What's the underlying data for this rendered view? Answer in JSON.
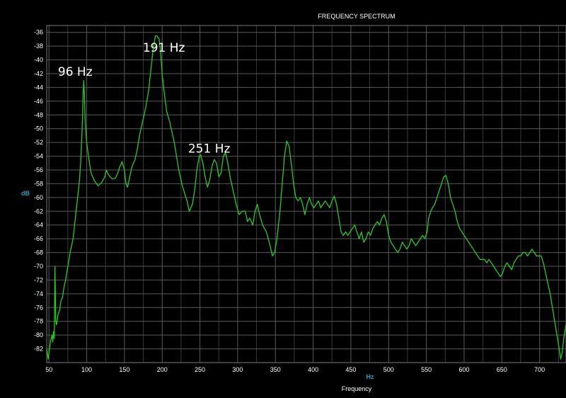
{
  "chart_data": {
    "type": "line",
    "title": "FREQUENCY SPECTRUM",
    "xlabel": "Frequency",
    "x_unit": "Hz",
    "ylabel": "dB",
    "xlim": [
      47,
      735
    ],
    "ylim": [
      -84,
      -35
    ],
    "grid": true,
    "x_ticks": [
      50,
      100,
      150,
      200,
      250,
      300,
      350,
      400,
      450,
      500,
      550,
      600,
      650,
      700
    ],
    "y_ticks": [
      -36,
      -38,
      -40,
      -42,
      -44,
      -46,
      -48,
      -50,
      -52,
      -54,
      -56,
      -58,
      -60,
      -62,
      -64,
      -66,
      -68,
      -70,
      -72,
      -74,
      -76,
      -78,
      -80,
      -82
    ],
    "series_color": "#22cc22",
    "grid_color": "#5a5a5a",
    "background": "#000000",
    "annotations": [
      {
        "text": "96 Hz",
        "x": 96,
        "y": -42.3
      },
      {
        "text": "191 Hz",
        "x": 191,
        "y": -38.8
      },
      {
        "text": "251 Hz",
        "x": 251,
        "y": -53.5
      }
    ],
    "points": [
      [
        47,
        -82.0
      ],
      [
        49,
        -83.5
      ],
      [
        50,
        -82.5
      ],
      [
        52,
        -81.0
      ],
      [
        54,
        -80.0
      ],
      [
        55,
        -81.0
      ],
      [
        56,
        -79.5
      ],
      [
        57,
        -80.5
      ],
      [
        58,
        -70.0
      ],
      [
        59,
        -78.0
      ],
      [
        60,
        -78.5
      ],
      [
        62,
        -77.0
      ],
      [
        64,
        -76.5
      ],
      [
        66,
        -75.0
      ],
      [
        68,
        -74.5
      ],
      [
        70,
        -73.0
      ],
      [
        72,
        -72.0
      ],
      [
        75,
        -70.0
      ],
      [
        78,
        -68.0
      ],
      [
        82,
        -66.0
      ],
      [
        85,
        -63.0
      ],
      [
        88,
        -60.0
      ],
      [
        90,
        -58.0
      ],
      [
        92,
        -55.0
      ],
      [
        94,
        -50.0
      ],
      [
        95,
        -46.0
      ],
      [
        96,
        -43.0
      ],
      [
        97,
        -45.0
      ],
      [
        98,
        -49.0
      ],
      [
        100,
        -52.0
      ],
      [
        103,
        -54.5
      ],
      [
        106,
        -56.5
      ],
      [
        110,
        -57.5
      ],
      [
        115,
        -58.3
      ],
      [
        120,
        -57.8
      ],
      [
        124,
        -57.0
      ],
      [
        126,
        -56.0
      ],
      [
        128,
        -56.5
      ],
      [
        131,
        -57.0
      ],
      [
        134,
        -57.3
      ],
      [
        138,
        -57.2
      ],
      [
        141,
        -56.5
      ],
      [
        144,
        -55.5
      ],
      [
        147,
        -54.8
      ],
      [
        150,
        -56.0
      ],
      [
        152,
        -58.0
      ],
      [
        154,
        -58.5
      ],
      [
        157,
        -57.0
      ],
      [
        160,
        -55.5
      ],
      [
        164,
        -54.5
      ],
      [
        167,
        -53.0
      ],
      [
        170,
        -51.0
      ],
      [
        174,
        -49.0
      ],
      [
        178,
        -47.0
      ],
      [
        182,
        -44.5
      ],
      [
        185,
        -41.5
      ],
      [
        188,
        -38.5
      ],
      [
        191,
        -36.5
      ],
      [
        193,
        -36.5
      ],
      [
        196,
        -37.0
      ],
      [
        198,
        -39.0
      ],
      [
        200,
        -42.0
      ],
      [
        203,
        -45.0
      ],
      [
        206,
        -47.5
      ],
      [
        210,
        -49.0
      ],
      [
        213,
        -50.5
      ],
      [
        216,
        -52.0
      ],
      [
        219,
        -54.0
      ],
      [
        222,
        -56.0
      ],
      [
        226,
        -58.0
      ],
      [
        230,
        -59.5
      ],
      [
        233,
        -60.5
      ],
      [
        236,
        -62.0
      ],
      [
        240,
        -61.0
      ],
      [
        243,
        -59.0
      ],
      [
        246,
        -56.0
      ],
      [
        249,
        -54.0
      ],
      [
        251,
        -53.8
      ],
      [
        254,
        -55.0
      ],
      [
        257,
        -57.0
      ],
      [
        260,
        -58.5
      ],
      [
        263,
        -57.5
      ],
      [
        266,
        -55.5
      ],
      [
        269,
        -54.5
      ],
      [
        272,
        -55.0
      ],
      [
        275,
        -57.0
      ],
      [
        278,
        -56.5
      ],
      [
        281,
        -54.0
      ],
      [
        284,
        -53.5
      ],
      [
        287,
        -55.0
      ],
      [
        290,
        -57.0
      ],
      [
        294,
        -59.0
      ],
      [
        298,
        -61.0
      ],
      [
        302,
        -62.5
      ],
      [
        306,
        -62.0
      ],
      [
        310,
        -62.0
      ],
      [
        313,
        -63.5
      ],
      [
        316,
        -63.0
      ],
      [
        320,
        -64.0
      ],
      [
        323,
        -62.0
      ],
      [
        326,
        -61.0
      ],
      [
        329,
        -62.5
      ],
      [
        333,
        -64.0
      ],
      [
        338,
        -65.0
      ],
      [
        343,
        -67.0
      ],
      [
        346,
        -68.5
      ],
      [
        349,
        -68.0
      ],
      [
        352,
        -66.0
      ],
      [
        356,
        -62.0
      ],
      [
        359,
        -58.0
      ],
      [
        362,
        -54.0
      ],
      [
        365,
        -51.8
      ],
      [
        368,
        -52.5
      ],
      [
        371,
        -55.0
      ],
      [
        374,
        -58.0
      ],
      [
        377,
        -60.0
      ],
      [
        380,
        -60.5
      ],
      [
        383,
        -60.0
      ],
      [
        386,
        -61.0
      ],
      [
        389,
        -62.5
      ],
      [
        392,
        -61.0
      ],
      [
        395,
        -60.0
      ],
      [
        398,
        -61.0
      ],
      [
        401,
        -61.5
      ],
      [
        404,
        -61.0
      ],
      [
        407,
        -60.5
      ],
      [
        410,
        -61.5
      ],
      [
        413,
        -61.0
      ],
      [
        416,
        -60.5
      ],
      [
        419,
        -61.0
      ],
      [
        422,
        -61.5
      ],
      [
        425,
        -60.5
      ],
      [
        428,
        -59.8
      ],
      [
        431,
        -61.0
      ],
      [
        434,
        -63.0
      ],
      [
        437,
        -65.0
      ],
      [
        440,
        -65.5
      ],
      [
        443,
        -65.0
      ],
      [
        446,
        -65.5
      ],
      [
        449,
        -65.0
      ],
      [
        452,
        -64.5
      ],
      [
        455,
        -64.0
      ],
      [
        458,
        -65.0
      ],
      [
        461,
        -66.0
      ],
      [
        464,
        -65.0
      ],
      [
        467,
        -66.5
      ],
      [
        470,
        -66.0
      ],
      [
        473,
        -65.0
      ],
      [
        476,
        -65.5
      ],
      [
        479,
        -64.5
      ],
      [
        482,
        -64.0
      ],
      [
        485,
        -63.5
      ],
      [
        488,
        -64.0
      ],
      [
        491,
        -63.0
      ],
      [
        494,
        -62.5
      ],
      [
        497,
        -63.5
      ],
      [
        500,
        -65.5
      ],
      [
        503,
        -66.5
      ],
      [
        506,
        -67.0
      ],
      [
        509,
        -67.5
      ],
      [
        512,
        -68.0
      ],
      [
        515,
        -67.5
      ],
      [
        518,
        -66.5
      ],
      [
        521,
        -67.0
      ],
      [
        524,
        -67.5
      ],
      [
        527,
        -67.0
      ],
      [
        530,
        -66.0
      ],
      [
        533,
        -66.5
      ],
      [
        536,
        -67.0
      ],
      [
        539,
        -66.5
      ],
      [
        542,
        -66.0
      ],
      [
        545,
        -65.5
      ],
      [
        548,
        -66.0
      ],
      [
        551,
        -65.0
      ],
      [
        553,
        -63.0
      ],
      [
        556,
        -62.0
      ],
      [
        558,
        -61.5
      ],
      [
        561,
        -61.0
      ],
      [
        564,
        -60.0
      ],
      [
        567,
        -59.0
      ],
      [
        570,
        -58.0
      ],
      [
        573,
        -57.0
      ],
      [
        576,
        -56.8
      ],
      [
        579,
        -58.0
      ],
      [
        582,
        -60.0
      ],
      [
        585,
        -61.0
      ],
      [
        588,
        -62.0
      ],
      [
        591,
        -63.5
      ],
      [
        594,
        -64.5
      ],
      [
        597,
        -65.0
      ],
      [
        600,
        -65.5
      ],
      [
        603,
        -66.0
      ],
      [
        606,
        -66.5
      ],
      [
        609,
        -67.0
      ],
      [
        612,
        -67.5
      ],
      [
        615,
        -68.0
      ],
      [
        618,
        -68.5
      ],
      [
        621,
        -69.0
      ],
      [
        624,
        -69.0
      ],
      [
        627,
        -69.0
      ],
      [
        630,
        -69.5
      ],
      [
        633,
        -69.0
      ],
      [
        636,
        -69.5
      ],
      [
        639,
        -70.0
      ],
      [
        642,
        -70.5
      ],
      [
        645,
        -71.0
      ],
      [
        648,
        -71.5
      ],
      [
        651,
        -71.0
      ],
      [
        654,
        -70.0
      ],
      [
        657,
        -69.5
      ],
      [
        660,
        -70.0
      ],
      [
        663,
        -70.5
      ],
      [
        666,
        -69.5
      ],
      [
        669,
        -69.0
      ],
      [
        672,
        -68.5
      ],
      [
        675,
        -68.5
      ],
      [
        678,
        -68.0
      ],
      [
        681,
        -68.0
      ],
      [
        684,
        -68.5
      ],
      [
        687,
        -68.0
      ],
      [
        690,
        -67.5
      ],
      [
        693,
        -68.0
      ],
      [
        696,
        -68.5
      ],
      [
        699,
        -68.5
      ],
      [
        702,
        -68.5
      ],
      [
        705,
        -69.5
      ],
      [
        708,
        -71.0
      ],
      [
        711,
        -72.5
      ],
      [
        714,
        -74.0
      ],
      [
        717,
        -76.0
      ],
      [
        720,
        -78.0
      ],
      [
        723,
        -80.0
      ],
      [
        726,
        -82.0
      ],
      [
        728,
        -83.5
      ],
      [
        730,
        -82.5
      ],
      [
        732,
        -80.5
      ],
      [
        735,
        -78.5
      ]
    ]
  }
}
